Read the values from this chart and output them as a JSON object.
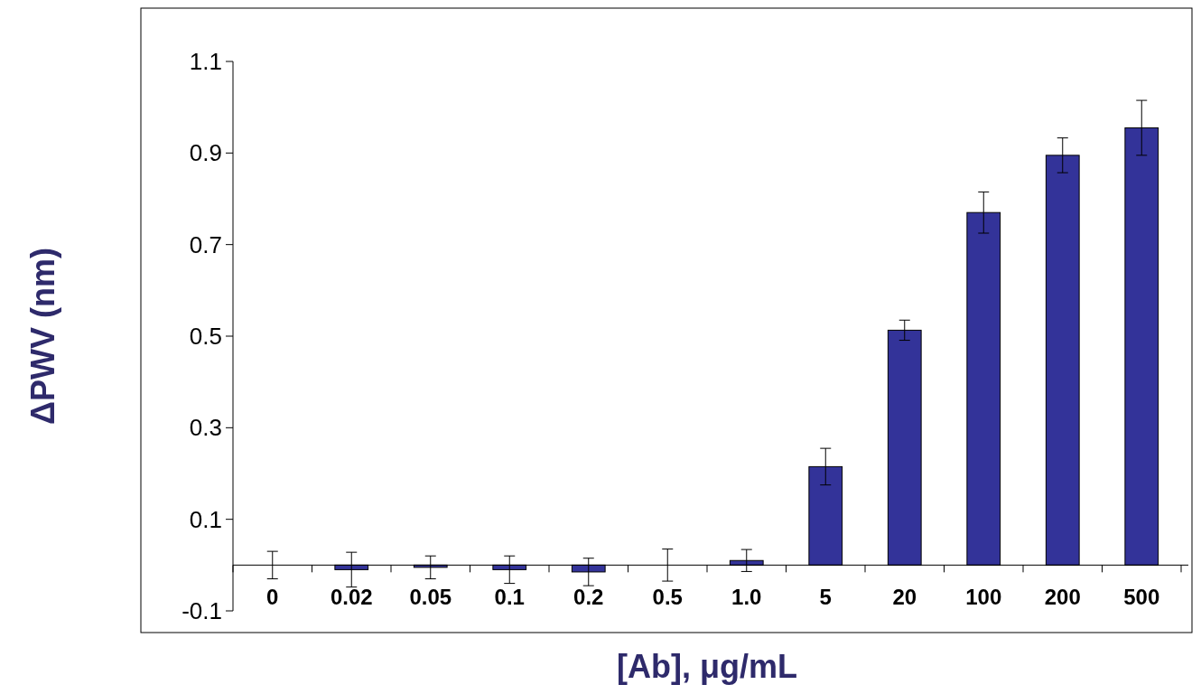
{
  "chart_data": {
    "type": "bar",
    "xlabel": "[Ab], μg/mL",
    "ylabel": "ΔPWV (nm)",
    "categories": [
      "0",
      "0.02",
      "0.05",
      "0.1",
      "0.2",
      "0.5",
      "1.0",
      "5",
      "20",
      "100",
      "200",
      "500"
    ],
    "values": [
      0,
      -0.01,
      -0.005,
      -0.01,
      -0.015,
      0,
      0.01,
      0.215,
      0.513,
      0.77,
      0.895,
      0.955
    ],
    "errors": [
      0.03,
      0.038,
      0.025,
      0.03,
      0.03,
      0.035,
      0.024,
      0.04,
      0.022,
      0.045,
      0.038,
      0.06
    ],
    "color": "#333399",
    "ylim": [
      -0.1,
      1.1
    ],
    "yticks": [
      -0.1,
      0.1,
      0.3,
      0.5,
      0.7,
      0.9,
      1.1
    ]
  }
}
